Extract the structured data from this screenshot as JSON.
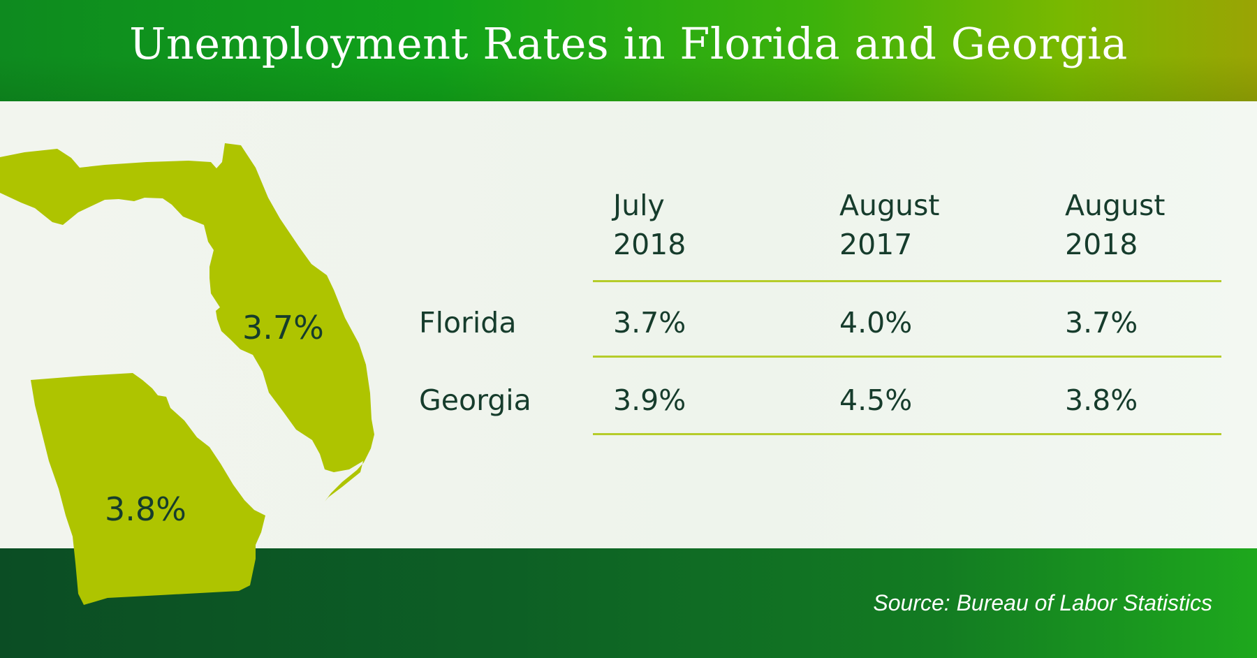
{
  "header": {
    "title": "Unemployment Rates in Florida and Georgia"
  },
  "map": {
    "florida_label": "3.7%",
    "georgia_label": "3.8%",
    "state_color": "#aec400"
  },
  "table": {
    "columns": [
      {
        "line1": "July",
        "line2": "2018"
      },
      {
        "line1": "August",
        "line2": "2017"
      },
      {
        "line1": "August",
        "line2": "2018"
      }
    ],
    "rows": [
      {
        "label": "Florida",
        "values": [
          "3.7%",
          "4.0%",
          "3.7%"
        ]
      },
      {
        "label": "Georgia",
        "values": [
          "3.9%",
          "4.5%",
          "3.8%"
        ]
      }
    ]
  },
  "footer": {
    "source": "Source: Bureau of Labor Statistics"
  },
  "colors": {
    "header_green": "#11a21a",
    "footer_green": "#0d5f25",
    "text_dark": "#163c2c",
    "rule_lime": "#b5cc2a"
  },
  "chart_data": {
    "type": "table",
    "title": "Unemployment Rates in Florida and Georgia",
    "categories": [
      "July 2018",
      "August 2017",
      "August 2018"
    ],
    "series": [
      {
        "name": "Florida",
        "values": [
          3.7,
          4.0,
          3.7
        ]
      },
      {
        "name": "Georgia",
        "values": [
          3.9,
          4.5,
          3.8
        ]
      }
    ],
    "unit": "%",
    "source": "Source: Bureau of Labor Statistics"
  }
}
